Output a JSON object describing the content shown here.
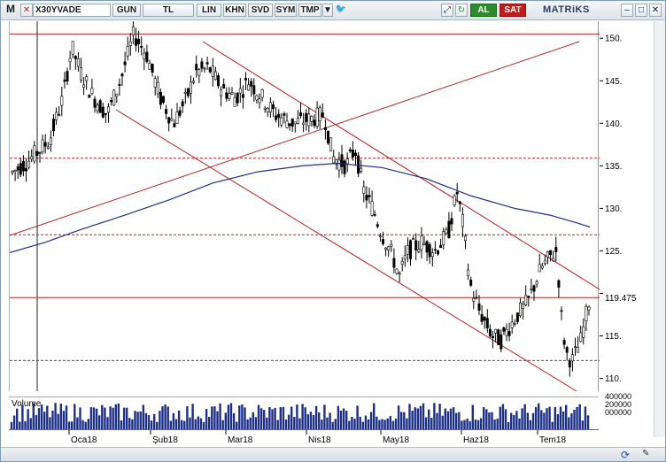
{
  "toolbar": {
    "menu_letter": "M",
    "symbol": "X30YVADE",
    "period": "GUN",
    "currency": "TL",
    "scale": "LIN",
    "buttons": [
      "KHN",
      "SVD",
      "SYM",
      "TMP"
    ],
    "buy_label": "AL",
    "sell_label": "SAT",
    "brand": "MATRiKS"
  },
  "chart_data": {
    "type": "candlestick",
    "title": "",
    "ylim": [
      108.5,
      152
    ],
    "y_ticks": [
      110,
      115,
      120,
      125,
      130,
      135,
      140,
      145,
      150
    ],
    "y_tick_labels": [
      "110.",
      "115.",
      "119.475",
      "125.",
      "130.",
      "135.",
      "140.",
      "145.",
      "150."
    ],
    "last_price_label": "119.475",
    "x_labels": [
      "Oca18",
      "Şub18",
      "Mar18",
      "Nis18",
      "May18",
      "Haz18",
      "Tem18"
    ],
    "volume_label": "Volume",
    "volume_ticks": [
      "400000",
      "200000",
      "000000"
    ],
    "horizontal_levels_solid": [
      150.5,
      119.5
    ],
    "horizontal_levels_dashed": [
      135.9,
      126.9,
      112.1
    ],
    "ma_color": "#1f2f8f",
    "trend_color": "#c41c1c"
  }
}
